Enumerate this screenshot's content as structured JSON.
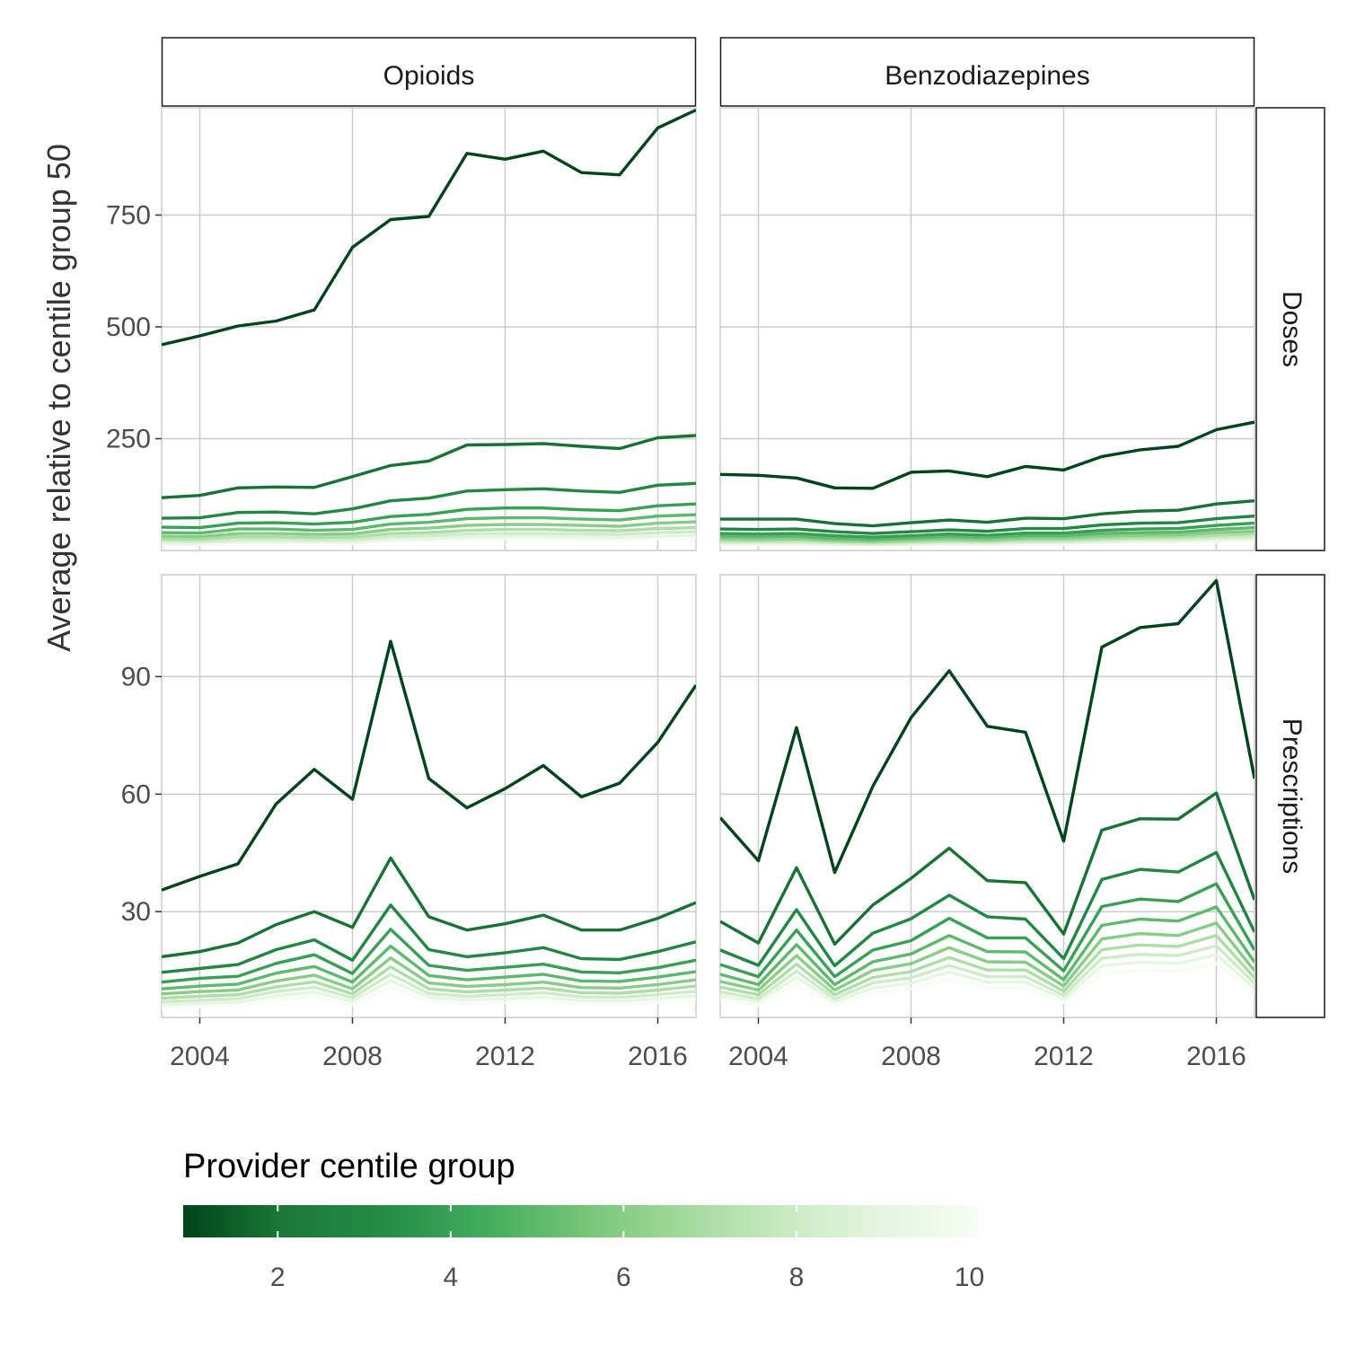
{
  "chart_data": {
    "type": "line",
    "facet_columns": [
      "Opioids",
      "Benzodiazepines"
    ],
    "facet_rows": [
      "Doses",
      "Prescriptions"
    ],
    "ylabel": "Average relative to centile group 50",
    "xlabel": "",
    "x": [
      2003,
      2004,
      2005,
      2006,
      2007,
      2008,
      2009,
      2010,
      2011,
      2012,
      2013,
      2014,
      2015,
      2016,
      2017
    ],
    "x_ticks": [
      2004,
      2008,
      2012,
      2016
    ],
    "xlim": [
      2003,
      2017
    ],
    "y_ticks": {
      "Doses": [
        250,
        500,
        750
      ],
      "Prescriptions": [
        30,
        60,
        90
      ]
    },
    "ylim": {
      "Doses": [
        0,
        990
      ],
      "Prescriptions": [
        3,
        116
      ]
    },
    "grid": true,
    "legend": {
      "title": "Provider centile group",
      "type": "colorbar",
      "position": "bottom",
      "ticks": [
        2,
        4,
        6,
        8,
        10
      ],
      "range": [
        1,
        10
      ],
      "colors": [
        "#00441b",
        "#1b7837",
        "#238b45",
        "#41ab5d",
        "#74c476",
        "#a1d99b",
        "#c7e9c0",
        "#e5f5e0",
        "#f7fcf5"
      ]
    },
    "panels": [
      {
        "column": "Opioids",
        "row": "Doses",
        "series": [
          {
            "group": 1,
            "values": [
              460,
              480,
              502,
              513,
              538,
              678,
              740,
              747,
              888,
              875,
              893,
              845,
              840,
              945,
              985
            ]
          },
          {
            "group": 2,
            "values": [
              118,
              123,
              140,
              142,
              141,
              165,
              190,
              200,
              236,
              237,
              239,
              233,
              228,
              252,
              257
            ]
          },
          {
            "group": 3,
            "values": [
              72,
              73,
              85,
              86,
              82,
              93,
              111,
              117,
              133,
              136,
              138,
              133,
              130,
              146,
              150
            ]
          },
          {
            "group": 4,
            "values": [
              52,
              51,
              61,
              62,
              59,
              63,
              76,
              81,
              92,
              95,
              95,
              91,
              89,
              100,
              104
            ]
          },
          {
            "group": 5,
            "values": [
              40,
              39,
              48,
              48,
              45,
              47,
              59,
              63,
              71,
              73,
              73,
              70,
              68,
              77,
              80
            ]
          },
          {
            "group": 6,
            "values": [
              32,
              31,
              38,
              38,
              36,
              37,
              47,
              50,
              56,
              58,
              58,
              56,
              54,
              61,
              64
            ]
          },
          {
            "group": 7,
            "values": [
              26,
              25,
              31,
              31,
              29,
              30,
              38,
              40,
              45,
              47,
              47,
              45,
              44,
              49,
              51
            ]
          },
          {
            "group": 8,
            "values": [
              21,
              20,
              25,
              25,
              24,
              24,
              31,
              33,
              37,
              38,
              38,
              37,
              36,
              40,
              42
            ]
          },
          {
            "group": 9,
            "values": [
              17,
              16,
              20,
              20,
              19,
              19,
              25,
              26,
              30,
              31,
              31,
              30,
              29,
              32,
              34
            ]
          },
          {
            "group": 10,
            "values": [
              13,
              13,
              16,
              16,
              15,
              15,
              20,
              21,
              24,
              25,
              25,
              24,
              23,
              26,
              27
            ]
          }
        ]
      },
      {
        "column": "Benzodiazepines",
        "row": "Doses",
        "series": [
          {
            "group": 1,
            "values": [
              170,
              168,
              162,
              140,
              139,
              175,
              178,
              165,
              188,
              180,
              210,
              225,
              233,
              270,
              287
            ]
          },
          {
            "group": 2,
            "values": [
              70,
              70,
              70,
              60,
              55,
              62,
              68,
              63,
              72,
              71,
              82,
              88,
              90,
              104,
              111
            ]
          },
          {
            "group": 3,
            "values": [
              48,
              47,
              48,
              42,
              38,
              42,
              46,
              43,
              49,
              49,
              57,
              61,
              62,
              71,
              77
            ]
          },
          {
            "group": 4,
            "values": [
              38,
              37,
              38,
              33,
              30,
              33,
              37,
              34,
              39,
              39,
              45,
              48,
              49,
              56,
              61
            ]
          },
          {
            "group": 5,
            "values": [
              32,
              31,
              32,
              27,
              25,
              28,
              31,
              29,
              33,
              33,
              38,
              40,
              41,
              47,
              51
            ]
          },
          {
            "group": 6,
            "values": [
              27,
              26,
              27,
              23,
              21,
              24,
              26,
              24,
              28,
              28,
              32,
              34,
              35,
              40,
              43
            ]
          },
          {
            "group": 7,
            "values": [
              23,
              22,
              23,
              20,
              18,
              20,
              22,
              21,
              24,
              24,
              27,
              29,
              30,
              34,
              37
            ]
          },
          {
            "group": 8,
            "values": [
              19,
              19,
              19,
              17,
              15,
              17,
              19,
              18,
              20,
              20,
              23,
              25,
              25,
              29,
              31
            ]
          },
          {
            "group": 9,
            "values": [
              16,
              16,
              16,
              14,
              13,
              14,
              16,
              15,
              17,
              17,
              19,
              21,
              21,
              24,
              26
            ]
          },
          {
            "group": 10,
            "values": [
              13,
              13,
              13,
              11,
              10,
              11,
              13,
              12,
              14,
              14,
              16,
              17,
              17,
              20,
              21
            ]
          }
        ]
      },
      {
        "column": "Opioids",
        "row": "Prescriptions",
        "series": [
          {
            "group": 1,
            "values": [
              35.5,
              39,
              42.2,
              57.5,
              66.3,
              58.7,
              99,
              64,
              56.5,
              61.4,
              67.3,
              59.3,
              62.8,
              73.2,
              87.8
            ]
          },
          {
            "group": 2,
            "values": [
              18.5,
              19.8,
              22,
              26.7,
              30,
              26,
              43.7,
              28.7,
              25.3,
              26.9,
              29.1,
              25.3,
              25.3,
              28.3,
              32.3
            ]
          },
          {
            "group": 3,
            "values": [
              14.5,
              15.5,
              16.5,
              20.3,
              22.8,
              17.6,
              31.7,
              20.3,
              18.5,
              19.5,
              20.8,
              18,
              17.8,
              19.8,
              22.3
            ]
          },
          {
            "group": 4,
            "values": [
              12,
              13,
              13.5,
              16.8,
              19,
              14.2,
              25.5,
              16.3,
              15,
              15.8,
              16.6,
              14.6,
              14.4,
              15.7,
              17.6
            ]
          },
          {
            "group": 5,
            "values": [
              10.3,
              11,
              11.5,
              14.3,
              16,
              12,
              21.2,
              13.7,
              12.6,
              13.3,
              14,
              12.3,
              12.2,
              13.3,
              14.7
            ]
          },
          {
            "group": 6,
            "values": [
              9,
              9.6,
              10,
              12.3,
              13.8,
              10.3,
              18.2,
              11.8,
              10.9,
              11.4,
              12,
              10.6,
              10.5,
              11.4,
              12.6
            ]
          },
          {
            "group": 7,
            "values": [
              7.9,
              8.4,
              8.8,
              10.8,
              12.1,
              9,
              15.9,
              10.3,
              9.5,
              10,
              10.5,
              9.3,
              9.2,
              10,
              11
            ]
          },
          {
            "group": 8,
            "values": [
              7,
              7.4,
              7.8,
              9.6,
              10.7,
              8,
              14,
              9.1,
              8.4,
              8.8,
              9.3,
              8.2,
              8.1,
              8.8,
              9.7
            ]
          },
          {
            "group": 9,
            "values": [
              6.2,
              6.6,
              6.9,
              8.5,
              9.5,
              7.1,
              12.4,
              8.1,
              7.5,
              7.8,
              8.2,
              7.3,
              7.2,
              7.8,
              8.6
            ]
          },
          {
            "group": 10,
            "values": [
              5.4,
              5.7,
              6,
              7.4,
              8.3,
              6.2,
              10.8,
              7,
              6.5,
              6.8,
              7.2,
              6.4,
              6.3,
              6.8,
              7.5
            ]
          }
        ]
      },
      {
        "column": "Benzodiazepines",
        "row": "Prescriptions",
        "series": [
          {
            "group": 1,
            "values": [
              54,
              43,
              77,
              40,
              62,
              79.5,
              91.5,
              77.3,
              75.8,
              48,
              97.5,
              102.5,
              103.5,
              114.5,
              64
            ]
          },
          {
            "group": 2,
            "values": [
              27.5,
              22,
              41.2,
              21.7,
              31.7,
              38.5,
              46.2,
              37.9,
              37.4,
              24.3,
              50.8,
              53.7,
              53.6,
              60.3,
              33
            ]
          },
          {
            "group": 3,
            "values": [
              20.2,
              16.3,
              30.5,
              16.2,
              24.5,
              28.2,
              34.2,
              28.7,
              28.1,
              18,
              38.2,
              40.8,
              40.1,
              45.1,
              24.8
            ]
          },
          {
            "group": 4,
            "values": [
              16.5,
              13.4,
              25.3,
              13.4,
              20.2,
              22.6,
              28.3,
              23.3,
              23.3,
              14.9,
              31.3,
              33.2,
              32.6,
              37.1,
              20.2
            ]
          },
          {
            "group": 5,
            "values": [
              14,
              11.4,
              21.6,
              11.4,
              17.2,
              19.2,
              23.9,
              19.8,
              19.7,
              12.6,
              26.5,
              28.1,
              27.6,
              31.2,
              17.1
            ]
          },
          {
            "group": 6,
            "values": [
              12.2,
              10,
              18.8,
              10,
              15,
              16.7,
              20.8,
              17.2,
              17.1,
              11,
              23,
              24.4,
              23.9,
              27.1,
              14.9
            ]
          },
          {
            "group": 7,
            "values": [
              10.7,
              8.8,
              16.6,
              8.8,
              13.2,
              14.7,
              18.3,
              15.1,
              15.1,
              9.7,
              20.3,
              21.5,
              21.1,
              23.9,
              13.1
            ]
          },
          {
            "group": 8,
            "values": [
              9.5,
              7.8,
              14.8,
              7.8,
              11.8,
              13.1,
              16.3,
              13.4,
              13.4,
              8.6,
              18.1,
              19.1,
              18.8,
              21.3,
              11.7
            ]
          },
          {
            "group": 9,
            "values": [
              8.5,
              7,
              13.2,
              7,
              10.5,
              11.7,
              14.6,
              12,
              12,
              7.7,
              16.2,
              17.1,
              16.8,
              19,
              10.5
            ]
          },
          {
            "group": 10,
            "values": [
              7.5,
              6.2,
              11.7,
              6.2,
              9.3,
              10.3,
              12.9,
              10.6,
              10.6,
              6.8,
              14.3,
              15.1,
              14.8,
              16.8,
              9.3
            ]
          }
        ]
      }
    ]
  }
}
